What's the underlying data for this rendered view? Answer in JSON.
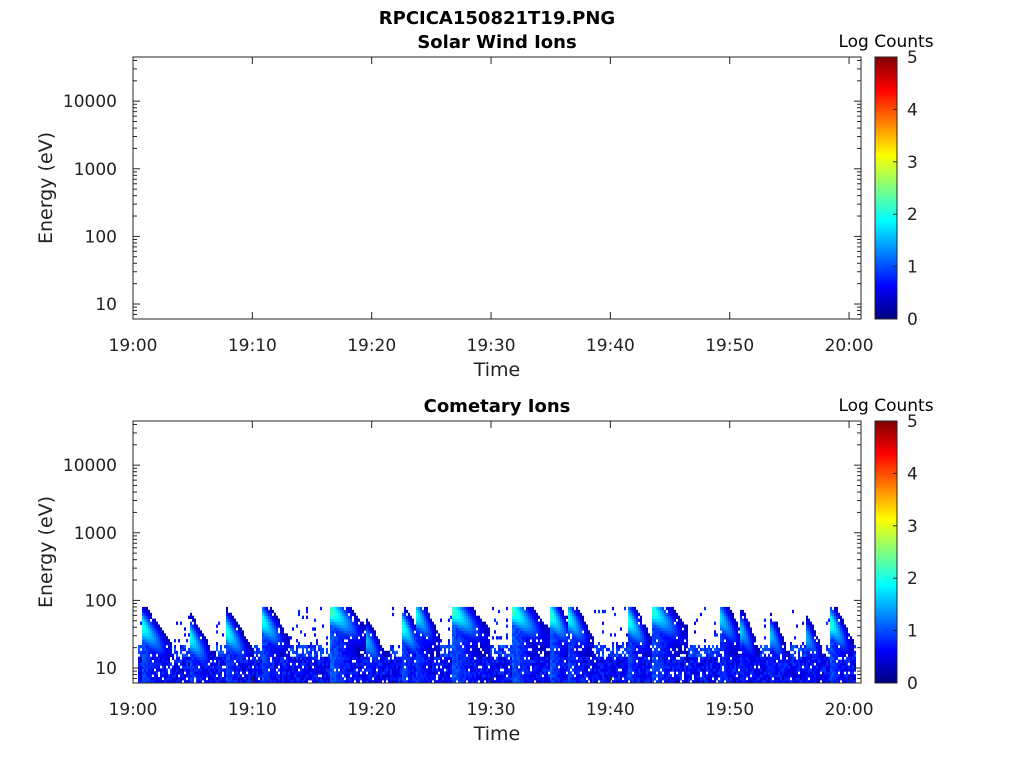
{
  "figure": {
    "title": "RPCICA150821T19.PNG"
  },
  "colors": {
    "axis": "#262626",
    "colormap": [
      "#00007f",
      "#0000ff",
      "#007fff",
      "#00ffff",
      "#7fff7f",
      "#ffff00",
      "#ff7f00",
      "#ff0000",
      "#7f0000"
    ]
  },
  "chart_data": [
    {
      "type": "heatmap",
      "title": "Solar Wind Ions",
      "xlabel": "Time",
      "ylabel": "Energy (eV)",
      "y_scale": "log",
      "xlim": [
        "19:00",
        "20:01"
      ],
      "ylim": [
        6,
        45000
      ],
      "x_ticks": [
        "19:00",
        "19:10",
        "19:20",
        "19:30",
        "19:40",
        "19:50",
        "20:00"
      ],
      "y_ticks": [
        "10",
        "100",
        "1000",
        "10000"
      ],
      "colorbar": {
        "label": "Log Counts",
        "range": [
          0,
          5
        ],
        "ticks": [
          "0",
          "1",
          "2",
          "3",
          "4",
          "5"
        ],
        "colormap": "jet"
      },
      "bursts": [],
      "background": {
        "present": false
      }
    },
    {
      "type": "heatmap",
      "title": "Cometary Ions",
      "xlabel": "Time",
      "ylabel": "Energy (eV)",
      "y_scale": "log",
      "xlim": [
        "19:00",
        "20:01"
      ],
      "ylim": [
        6,
        45000
      ],
      "x_ticks": [
        "19:00",
        "19:10",
        "19:20",
        "19:30",
        "19:40",
        "19:50",
        "20:00"
      ],
      "y_ticks": [
        "10",
        "100",
        "1000",
        "10000"
      ],
      "colorbar": {
        "label": "Log Counts",
        "range": [
          0,
          5
        ],
        "ticks": [
          "0",
          "1",
          "2",
          "3",
          "4",
          "5"
        ],
        "colormap": "jet"
      },
      "background": {
        "present": true,
        "time_range": [
          "19:00.5",
          "20:00.5"
        ],
        "energy_range_eV": [
          6,
          80
        ],
        "level_log_counts": 0.6
      },
      "bursts": [
        {
          "time": "19:00.8",
          "peak_eV": 40,
          "level": 2.0,
          "duration_min": 2.5
        },
        {
          "time": "19:04.8",
          "peak_eV": 28,
          "level": 1.9,
          "duration_min": 2.0
        },
        {
          "time": "19:07.8",
          "peak_eV": 35,
          "level": 2.0,
          "duration_min": 2.2
        },
        {
          "time": "19:10.8",
          "peak_eV": 50,
          "level": 2.0,
          "duration_min": 2.3
        },
        {
          "time": "19:16.6",
          "peak_eV": 70,
          "level": 2.2,
          "duration_min": 3.0
        },
        {
          "time": "19:19.6",
          "peak_eV": 25,
          "level": 1.5,
          "duration_min": 1.8
        },
        {
          "time": "19:22.6",
          "peak_eV": 40,
          "level": 2.0,
          "duration_min": 1.8
        },
        {
          "time": "19:23.8",
          "peak_eV": 60,
          "level": 1.8,
          "duration_min": 1.8
        },
        {
          "time": "19:26.8",
          "peak_eV": 70,
          "level": 2.2,
          "duration_min": 3.0
        },
        {
          "time": "19:31.8",
          "peak_eV": 70,
          "level": 2.2,
          "duration_min": 3.0
        },
        {
          "time": "19:35.0",
          "peak_eV": 60,
          "level": 2.1,
          "duration_min": 2.0
        },
        {
          "time": "19:36.5",
          "peak_eV": 55,
          "level": 1.9,
          "duration_min": 2.0
        },
        {
          "time": "19:41.5",
          "peak_eV": 50,
          "level": 2.0,
          "duration_min": 2.0
        },
        {
          "time": "19:43.5",
          "peak_eV": 70,
          "level": 2.1,
          "duration_min": 3.0
        },
        {
          "time": "19:49.2",
          "peak_eV": 55,
          "level": 1.7,
          "duration_min": 2.0
        },
        {
          "time": "19:51.0",
          "peak_eV": 35,
          "level": 1.5,
          "duration_min": 1.5
        },
        {
          "time": "19:53.5",
          "peak_eV": 30,
          "level": 1.5,
          "duration_min": 1.5
        },
        {
          "time": "19:56.5",
          "peak_eV": 28,
          "level": 1.4,
          "duration_min": 1.5
        },
        {
          "time": "19:58.5",
          "peak_eV": 45,
          "level": 2.0,
          "duration_min": 1.8
        }
      ]
    }
  ]
}
